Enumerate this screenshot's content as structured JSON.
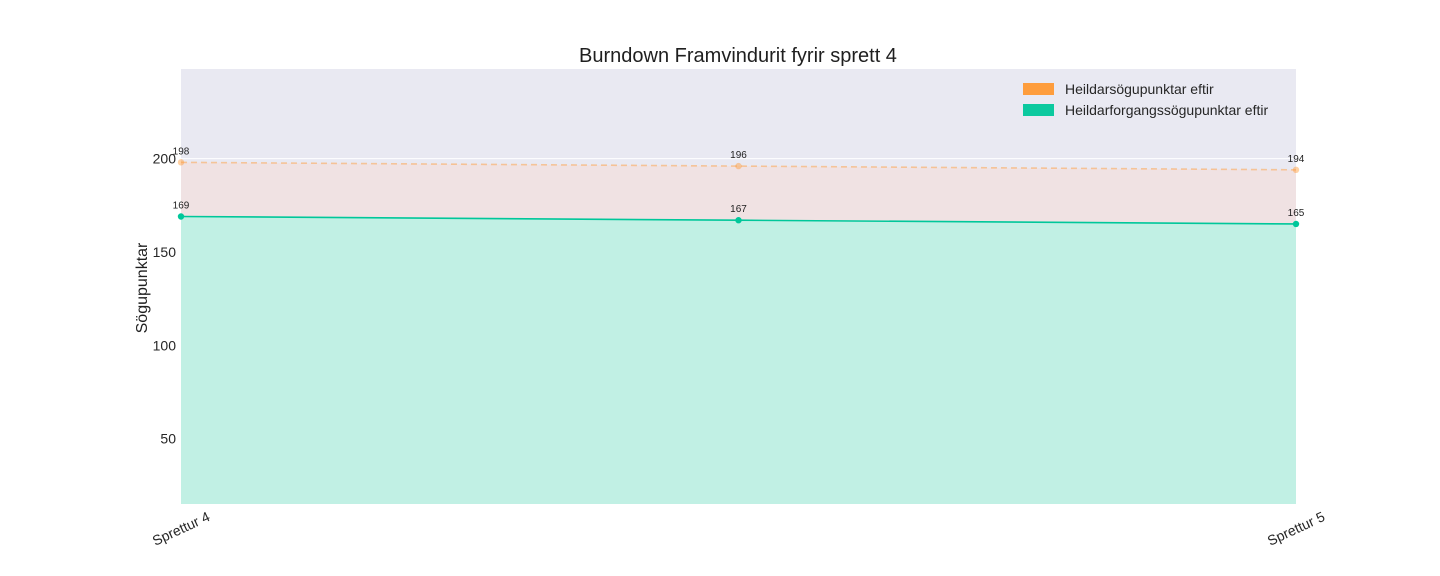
{
  "chart_data": {
    "type": "area",
    "title": "Burndown Framvindurit fyrir sprett 4",
    "ylabel": "Sögupunktar",
    "xlabel": "",
    "x_tick_labels": [
      "Sprettur 4",
      "",
      "Sprettur 5"
    ],
    "x": [
      0,
      1,
      2
    ],
    "ylim": [
      15,
      248
    ],
    "y_ticks": [
      50,
      100,
      150,
      200
    ],
    "grid": true,
    "legend_position": "top-right",
    "series": [
      {
        "name": "Heildarsögupunktar eftir",
        "values": [
          198,
          196,
          194
        ],
        "labels": [
          "198",
          "196",
          "194"
        ],
        "color": "#ff9933",
        "line_style": "dashed",
        "fill_color": "#f9d9d0"
      },
      {
        "name": "Heildarforgangssögupunktar eftir",
        "values": [
          169,
          167,
          165
        ],
        "labels": [
          "169",
          "167",
          "165"
        ],
        "color": "#00c79a",
        "line_style": "solid",
        "fill_color": "#c1f0e4"
      }
    ],
    "colors": {
      "plot_background": "#e9e9f2",
      "grid": "#ffffff"
    }
  }
}
